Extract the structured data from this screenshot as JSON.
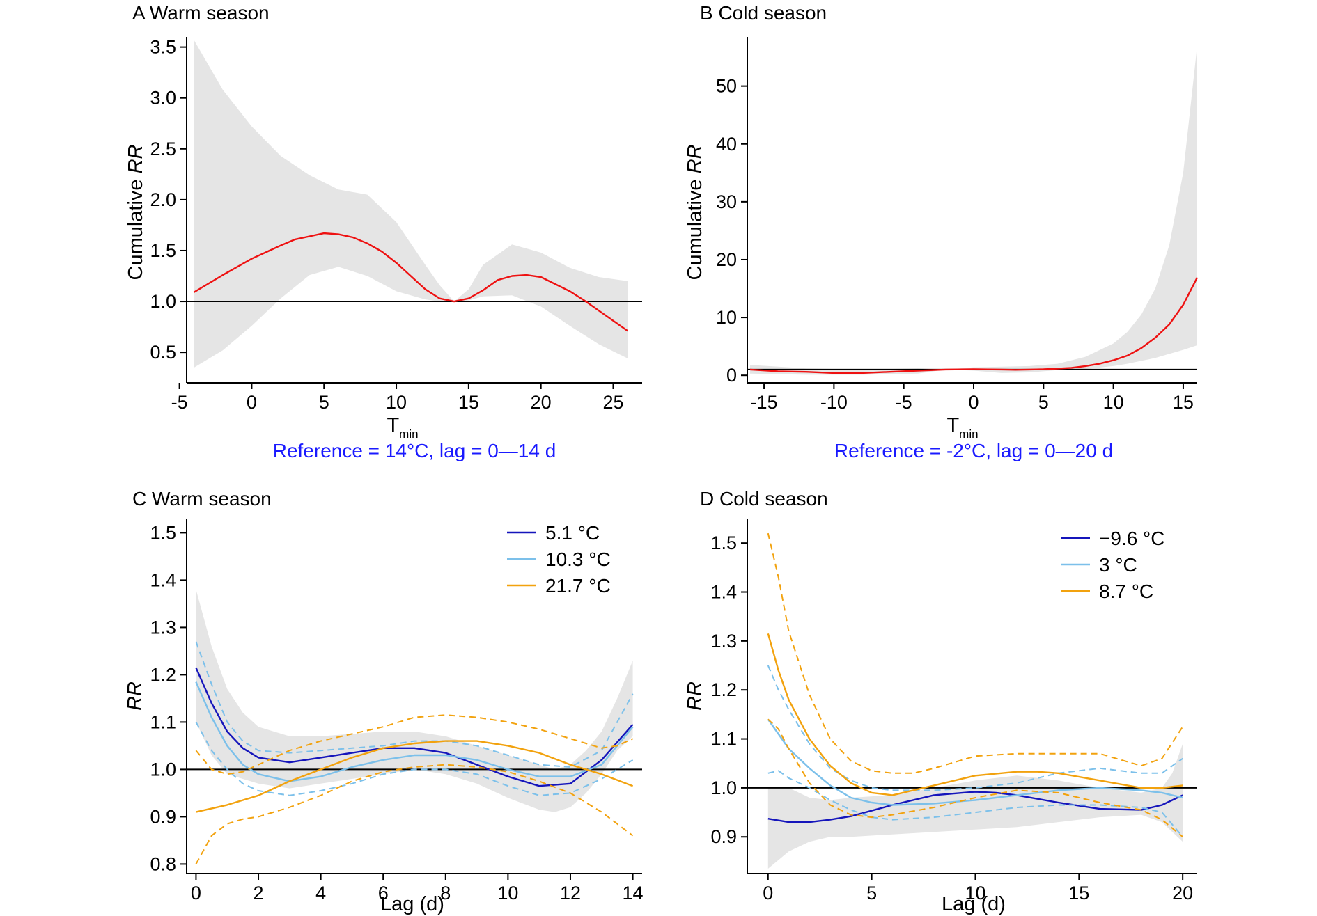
{
  "colors": {
    "ci_band": "#e5e5e5",
    "red": "#ee1111",
    "dark_blue": "#1515bb",
    "light_blue": "#7cc0ea",
    "orange": "#f2a20e",
    "reference_text": "#1a1aff",
    "axis": "#000000"
  },
  "chart_data": [
    {
      "panel": "A",
      "type": "line",
      "title": "A Warm season",
      "xlabel": "T",
      "xlabel_sub": "min",
      "ylabel_prefix": "Cumulative ",
      "ylabel_italic": "RR",
      "note": "Reference = 14°C, lag = 0—14 d",
      "xlim": [
        -4.5,
        27
      ],
      "ylim": [
        0.2,
        3.6
      ],
      "xticks": [
        -5,
        0,
        5,
        10,
        15,
        20,
        25
      ],
      "yticks": [
        0.5,
        1.0,
        1.5,
        2.0,
        2.5,
        3.0,
        3.5
      ],
      "ytick_labels": [
        "0.5",
        "1.0",
        "1.5",
        "2.0",
        "2.5",
        "3.0",
        "3.5"
      ],
      "reference_line": 1.0,
      "band": {
        "x": [
          -4,
          -2,
          0,
          2,
          4,
          6,
          8,
          10,
          12,
          13,
          14,
          15,
          16,
          18,
          20,
          22,
          24,
          26
        ],
        "lower": [
          0.35,
          0.52,
          0.76,
          1.03,
          1.26,
          1.34,
          1.25,
          1.1,
          1.02,
          1.0,
          1.0,
          1.01,
          1.05,
          1.06,
          0.95,
          0.76,
          0.58,
          0.44
        ],
        "upper": [
          3.57,
          3.08,
          2.72,
          2.43,
          2.24,
          2.1,
          2.05,
          1.78,
          1.36,
          1.16,
          1.0,
          1.12,
          1.36,
          1.56,
          1.48,
          1.33,
          1.24,
          1.2
        ]
      },
      "series": [
        {
          "color": "red",
          "style": "solid",
          "x": [
            -4,
            -2,
            0,
            2,
            3,
            4,
            5,
            6,
            7,
            8,
            9,
            10,
            11,
            12,
            13,
            14,
            15,
            16,
            17,
            18,
            19,
            20,
            21,
            22,
            23,
            24,
            25,
            26
          ],
          "y": [
            1.09,
            1.26,
            1.42,
            1.55,
            1.61,
            1.64,
            1.67,
            1.66,
            1.63,
            1.57,
            1.49,
            1.38,
            1.25,
            1.12,
            1.03,
            1.0,
            1.03,
            1.11,
            1.21,
            1.25,
            1.26,
            1.24,
            1.17,
            1.1,
            1.01,
            0.91,
            0.81,
            0.71
          ]
        }
      ]
    },
    {
      "panel": "B",
      "type": "line",
      "title": "B Cold season",
      "xlabel": "T",
      "xlabel_sub": "min",
      "ylabel_prefix": "Cumulative ",
      "ylabel_italic": "RR",
      "note": "Reference = -2°C, lag = 0—20 d",
      "xlim": [
        -16.2,
        16
      ],
      "ylim": [
        -1.3,
        58.5
      ],
      "xticks": [
        -15,
        -10,
        -5,
        0,
        5,
        10,
        15
      ],
      "yticks": [
        0,
        10,
        20,
        30,
        40,
        50
      ],
      "ytick_labels": [
        "0",
        "10",
        "20",
        "30",
        "40",
        "50"
      ],
      "reference_line": 1.0,
      "band": {
        "x": [
          -16,
          -12,
          -8,
          -4,
          -2,
          0,
          2,
          4,
          6,
          8,
          10,
          11,
          12,
          13,
          14,
          15,
          16
        ],
        "lower": [
          0.3,
          0.1,
          0.1,
          0.3,
          1.0,
          0.8,
          0.4,
          0.5,
          0.9,
          1.1,
          1.6,
          2.0,
          2.5,
          3.0,
          3.7,
          4.4,
          5.2
        ],
        "upper": [
          1.8,
          1.2,
          1.0,
          1.2,
          1.0,
          1.4,
          1.5,
          1.6,
          2.0,
          3.2,
          5.5,
          7.5,
          10.5,
          15.0,
          22.5,
          35.0,
          57.0
        ]
      },
      "series": [
        {
          "color": "red",
          "style": "solid",
          "x": [
            -16,
            -14,
            -12,
            -10,
            -8,
            -6,
            -4,
            -2,
            0,
            2,
            3,
            4,
            5,
            6,
            7,
            8,
            9,
            10,
            11,
            12,
            13,
            14,
            15,
            16
          ],
          "y": [
            1.0,
            0.7,
            0.6,
            0.4,
            0.4,
            0.6,
            0.8,
            1.0,
            1.05,
            1.0,
            0.95,
            1.0,
            1.05,
            1.15,
            1.3,
            1.6,
            2.0,
            2.6,
            3.4,
            4.7,
            6.5,
            8.8,
            12.2,
            16.9
          ]
        }
      ]
    },
    {
      "panel": "C",
      "type": "line",
      "title": "C  Warm season",
      "xlabel": "Lag (d)",
      "ylabel_prefix": "",
      "ylabel_italic": "RR",
      "xlim": [
        -0.3,
        14.3
      ],
      "ylim": [
        0.78,
        1.53
      ],
      "xticks": [
        0,
        2,
        4,
        6,
        8,
        10,
        12,
        14
      ],
      "yticks": [
        0.8,
        0.9,
        1.0,
        1.1,
        1.2,
        1.3,
        1.4,
        1.5
      ],
      "ytick_labels": [
        "0.8",
        "0.9",
        "1.0",
        "1.1",
        "1.2",
        "1.3",
        "1.4",
        "1.5"
      ],
      "reference_line": 1.0,
      "legend": [
        {
          "label": "5.1 °C",
          "color": "dark_blue"
        },
        {
          "label": "10.3 °C",
          "color": "light_blue"
        },
        {
          "label": "21.7 °C",
          "color": "orange"
        }
      ],
      "band": {
        "x": [
          0,
          0.5,
          1,
          1.5,
          2,
          3,
          4,
          5,
          6,
          7,
          8,
          9,
          10,
          11,
          11.5,
          12,
          12.5,
          13,
          13.5,
          14
        ],
        "lower": [
          1.1,
          1.03,
          0.99,
          0.98,
          0.97,
          0.96,
          0.97,
          0.98,
          0.99,
          1.0,
          0.99,
          0.97,
          0.94,
          0.915,
          0.91,
          0.92,
          0.95,
          0.99,
          1.04,
          1.07
        ],
        "upper": [
          1.38,
          1.26,
          1.17,
          1.12,
          1.09,
          1.07,
          1.07,
          1.075,
          1.08,
          1.08,
          1.07,
          1.05,
          1.03,
          1.01,
          1.0,
          1.01,
          1.04,
          1.08,
          1.15,
          1.23
        ]
      },
      "series": [
        {
          "name": "5.1 °C",
          "color": "dark_blue",
          "style": "solid",
          "x": [
            0,
            0.5,
            1,
            1.5,
            2,
            3,
            4,
            5,
            6,
            7,
            8,
            9,
            10,
            11,
            12,
            13,
            14
          ],
          "y": [
            1.215,
            1.14,
            1.08,
            1.045,
            1.025,
            1.015,
            1.025,
            1.035,
            1.045,
            1.045,
            1.035,
            1.01,
            0.985,
            0.965,
            0.97,
            1.02,
            1.095
          ]
        },
        {
          "name": "10.3 °C",
          "color": "light_blue",
          "style": "solid",
          "x": [
            0,
            0.5,
            1,
            1.5,
            2,
            3,
            4,
            5,
            6,
            7,
            8,
            9,
            10,
            11,
            12,
            13,
            14
          ],
          "y": [
            1.185,
            1.11,
            1.05,
            1.01,
            0.99,
            0.975,
            0.985,
            1.005,
            1.02,
            1.03,
            1.03,
            1.02,
            1.0,
            0.985,
            0.985,
            1.01,
            1.09
          ]
        },
        {
          "color": "light_blue",
          "style": "dashed",
          "x": [
            0,
            0.5,
            1,
            1.5,
            2,
            3,
            4,
            5,
            6,
            7,
            8,
            9,
            10,
            11,
            12,
            13,
            14
          ],
          "y": [
            1.27,
            1.18,
            1.1,
            1.06,
            1.04,
            1.035,
            1.04,
            1.045,
            1.05,
            1.06,
            1.06,
            1.05,
            1.03,
            1.01,
            1.005,
            1.04,
            1.16
          ]
        },
        {
          "color": "light_blue",
          "style": "dashed",
          "x": [
            0,
            0.5,
            1,
            1.5,
            2,
            3,
            4,
            5,
            6,
            7,
            8,
            9,
            10,
            11,
            12,
            13,
            14
          ],
          "y": [
            1.1,
            1.04,
            1.0,
            0.97,
            0.955,
            0.945,
            0.955,
            0.97,
            0.99,
            1.0,
            1.0,
            0.99,
            0.965,
            0.945,
            0.95,
            0.98,
            1.02
          ]
        },
        {
          "name": "21.7 °C",
          "color": "orange",
          "style": "solid",
          "x": [
            0,
            1,
            2,
            3,
            4,
            5,
            6,
            7,
            8,
            9,
            10,
            11,
            12,
            13,
            14
          ],
          "y": [
            0.91,
            0.925,
            0.945,
            0.975,
            1.0,
            1.025,
            1.045,
            1.055,
            1.06,
            1.06,
            1.05,
            1.035,
            1.01,
            0.99,
            0.965
          ]
        },
        {
          "color": "orange",
          "style": "dashed",
          "x": [
            0,
            0.5,
            1,
            1.5,
            2,
            3,
            4,
            5,
            6,
            7,
            8,
            9,
            10,
            11,
            12,
            12.5,
            13,
            13.5,
            14
          ],
          "y": [
            1.04,
            1.0,
            0.99,
            0.995,
            1.01,
            1.04,
            1.06,
            1.075,
            1.09,
            1.11,
            1.115,
            1.11,
            1.1,
            1.085,
            1.065,
            1.055,
            1.045,
            1.05,
            1.065
          ]
        },
        {
          "color": "orange",
          "style": "dashed",
          "x": [
            0,
            0.5,
            1,
            1.5,
            2,
            3,
            4,
            5,
            6,
            7,
            8,
            9,
            10,
            11,
            12,
            12.5,
            13,
            13.5,
            14
          ],
          "y": [
            0.8,
            0.86,
            0.885,
            0.895,
            0.9,
            0.92,
            0.945,
            0.975,
            0.995,
            1.005,
            1.01,
            1.005,
            0.995,
            0.975,
            0.95,
            0.93,
            0.91,
            0.885,
            0.86
          ]
        }
      ]
    },
    {
      "panel": "D",
      "type": "line",
      "title": "D Cold season",
      "xlabel": "Lag (d)",
      "ylabel_prefix": "",
      "ylabel_italic": "RR",
      "xlim": [
        -1,
        20.7
      ],
      "ylim": [
        0.825,
        1.55
      ],
      "xticks": [
        0,
        5,
        10,
        15,
        20
      ],
      "yticks": [
        0.9,
        1.0,
        1.1,
        1.2,
        1.3,
        1.4,
        1.5
      ],
      "ytick_labels": [
        "0.9",
        "1.0",
        "1.1",
        "1.2",
        "1.3",
        "1.4",
        "1.5"
      ],
      "reference_line": 1.0,
      "legend": [
        {
          "label": "−9.6 °C",
          "color": "dark_blue"
        },
        {
          "label": "3 °C",
          "color": "light_blue"
        },
        {
          "label": "8.7 °C",
          "color": "orange"
        }
      ],
      "band": {
        "x": [
          0,
          1,
          2,
          3,
          4,
          6,
          8,
          10,
          12,
          14,
          16,
          18,
          19,
          19.5,
          20
        ],
        "lower": [
          0.835,
          0.87,
          0.89,
          0.9,
          0.9,
          0.905,
          0.91,
          0.915,
          0.92,
          0.93,
          0.94,
          0.945,
          0.93,
          0.91,
          0.89
        ],
        "upper": [
          1.0,
          1.0,
          0.98,
          0.975,
          0.98,
          0.985,
          1.0,
          1.015,
          1.025,
          1.015,
          1.0,
          0.99,
          1.0,
          1.03,
          1.09
        ]
      },
      "series": [
        {
          "name": "−9.6 °C",
          "color": "dark_blue",
          "style": "solid",
          "x": [
            0,
            1,
            2,
            3,
            4,
            6,
            8,
            10,
            11,
            12,
            14,
            16,
            18,
            19,
            20
          ],
          "y": [
            0.937,
            0.93,
            0.93,
            0.935,
            0.942,
            0.965,
            0.985,
            0.992,
            0.99,
            0.985,
            0.97,
            0.957,
            0.955,
            0.965,
            0.985
          ]
        },
        {
          "name": "3 °C",
          "color": "light_blue",
          "style": "solid",
          "x": [
            0,
            0.5,
            1,
            2,
            3,
            4,
            5,
            6,
            8,
            10,
            12,
            14,
            16,
            18,
            19,
            20
          ],
          "y": [
            1.14,
            1.11,
            1.08,
            1.04,
            1.005,
            0.98,
            0.97,
            0.965,
            0.968,
            0.975,
            0.985,
            0.995,
            1.0,
            0.995,
            0.99,
            0.98
          ]
        },
        {
          "color": "light_blue",
          "style": "dashed",
          "x": [
            0,
            0.5,
            1,
            2,
            3,
            4,
            5,
            6,
            8,
            10,
            12,
            14,
            16,
            18,
            19,
            20
          ],
          "y": [
            1.25,
            1.2,
            1.16,
            1.09,
            1.04,
            1.015,
            1.0,
            0.995,
            0.995,
            1.0,
            1.01,
            1.03,
            1.04,
            1.03,
            1.03,
            1.06
          ]
        },
        {
          "color": "light_blue",
          "style": "dashed",
          "x": [
            0,
            0.5,
            1,
            2,
            3,
            4,
            5,
            6,
            8,
            10,
            12,
            14,
            16,
            18,
            19,
            20
          ],
          "y": [
            1.03,
            1.035,
            1.02,
            1.0,
            0.975,
            0.955,
            0.94,
            0.935,
            0.94,
            0.95,
            0.96,
            0.965,
            0.965,
            0.96,
            0.95,
            0.9
          ]
        },
        {
          "name": "8.7 °C",
          "color": "orange",
          "style": "solid",
          "x": [
            0,
            0.5,
            1,
            2,
            3,
            4,
            5,
            6,
            8,
            10,
            12,
            13,
            14,
            16,
            18,
            19,
            20
          ],
          "y": [
            1.315,
            1.24,
            1.18,
            1.1,
            1.045,
            1.01,
            0.99,
            0.985,
            1.005,
            1.025,
            1.033,
            1.033,
            1.03,
            1.015,
            1.0,
            1.0,
            1.005
          ]
        },
        {
          "color": "orange",
          "style": "dashed",
          "x": [
            0,
            0.5,
            1,
            2,
            3,
            4,
            5,
            6,
            7,
            8,
            10,
            12,
            14,
            16,
            18,
            19,
            20
          ],
          "y": [
            1.52,
            1.43,
            1.32,
            1.19,
            1.1,
            1.055,
            1.035,
            1.03,
            1.03,
            1.04,
            1.065,
            1.07,
            1.07,
            1.07,
            1.045,
            1.06,
            1.125
          ]
        },
        {
          "color": "orange",
          "style": "dashed",
          "x": [
            0,
            0.5,
            1,
            2,
            3,
            4,
            5,
            6,
            8,
            10,
            12,
            14,
            16,
            18,
            19,
            20
          ],
          "y": [
            1.14,
            1.12,
            1.08,
            1.01,
            0.965,
            0.945,
            0.94,
            0.945,
            0.96,
            0.98,
            0.995,
            0.99,
            0.97,
            0.955,
            0.935,
            0.9
          ]
        }
      ]
    }
  ]
}
